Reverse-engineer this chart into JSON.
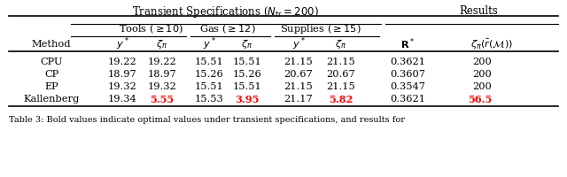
{
  "rows": [
    {
      "method": "CPU",
      "v": [
        "19.22",
        "19.22",
        "15.51",
        "15.51",
        "21.15",
        "21.15",
        "0.3621",
        "200"
      ],
      "red": []
    },
    {
      "method": "CP",
      "v": [
        "18.97",
        "18.97",
        "15.26",
        "15.26",
        "20.67",
        "20.67",
        "0.3607",
        "200"
      ],
      "red": []
    },
    {
      "method": "EP",
      "v": [
        "19.32",
        "19.32",
        "15.51",
        "15.51",
        "21.15",
        "21.15",
        "0.3547",
        "200"
      ],
      "red": []
    },
    {
      "method": "Kallenberg",
      "v": [
        "19.34",
        "5.55",
        "15.53",
        "3.95",
        "21.17",
        "5.82",
        "0.3621",
        "56.5"
      ],
      "red": [
        1,
        3,
        5,
        7
      ]
    }
  ],
  "caption": "Table 3: Bold values indicate optimal values under transient specifications, and results for",
  "bg": "#ffffff",
  "black": "#000000",
  "red": "#ff0000"
}
